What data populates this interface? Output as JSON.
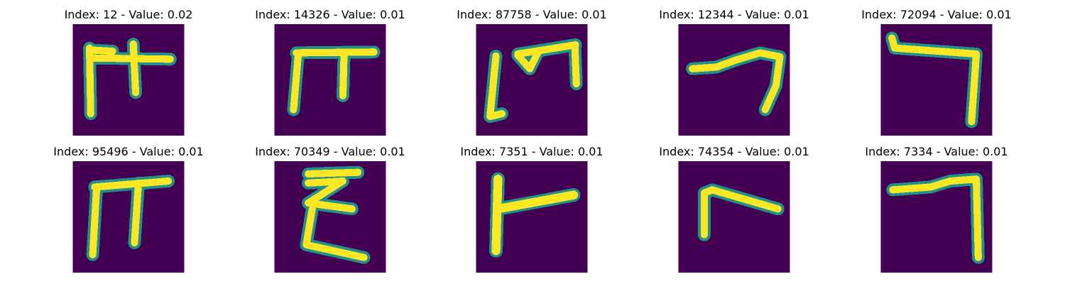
{
  "colors": {
    "background": "#440154",
    "mid": "#21918c",
    "stroke_glow": "#5ec962",
    "stroke": "#fde725"
  },
  "panels": [
    {
      "title": "Index: 12 - Value: 0.02"
    },
    {
      "title": "Index: 14326 - Value: 0.01"
    },
    {
      "title": "Index: 87758 - Value: 0.01"
    },
    {
      "title": "Index: 12344 - Value: 0.01"
    },
    {
      "title": "Index: 72094 - Value: 0.01"
    },
    {
      "title": "Index: 95496 - Value: 0.01"
    },
    {
      "title": "Index: 70349 - Value: 0.01"
    },
    {
      "title": "Index: 7351 - Value: 0.01"
    },
    {
      "title": "Index: 74354 - Value: 0.01"
    },
    {
      "title": "Index: 7334 - Value: 0.01"
    }
  ]
}
